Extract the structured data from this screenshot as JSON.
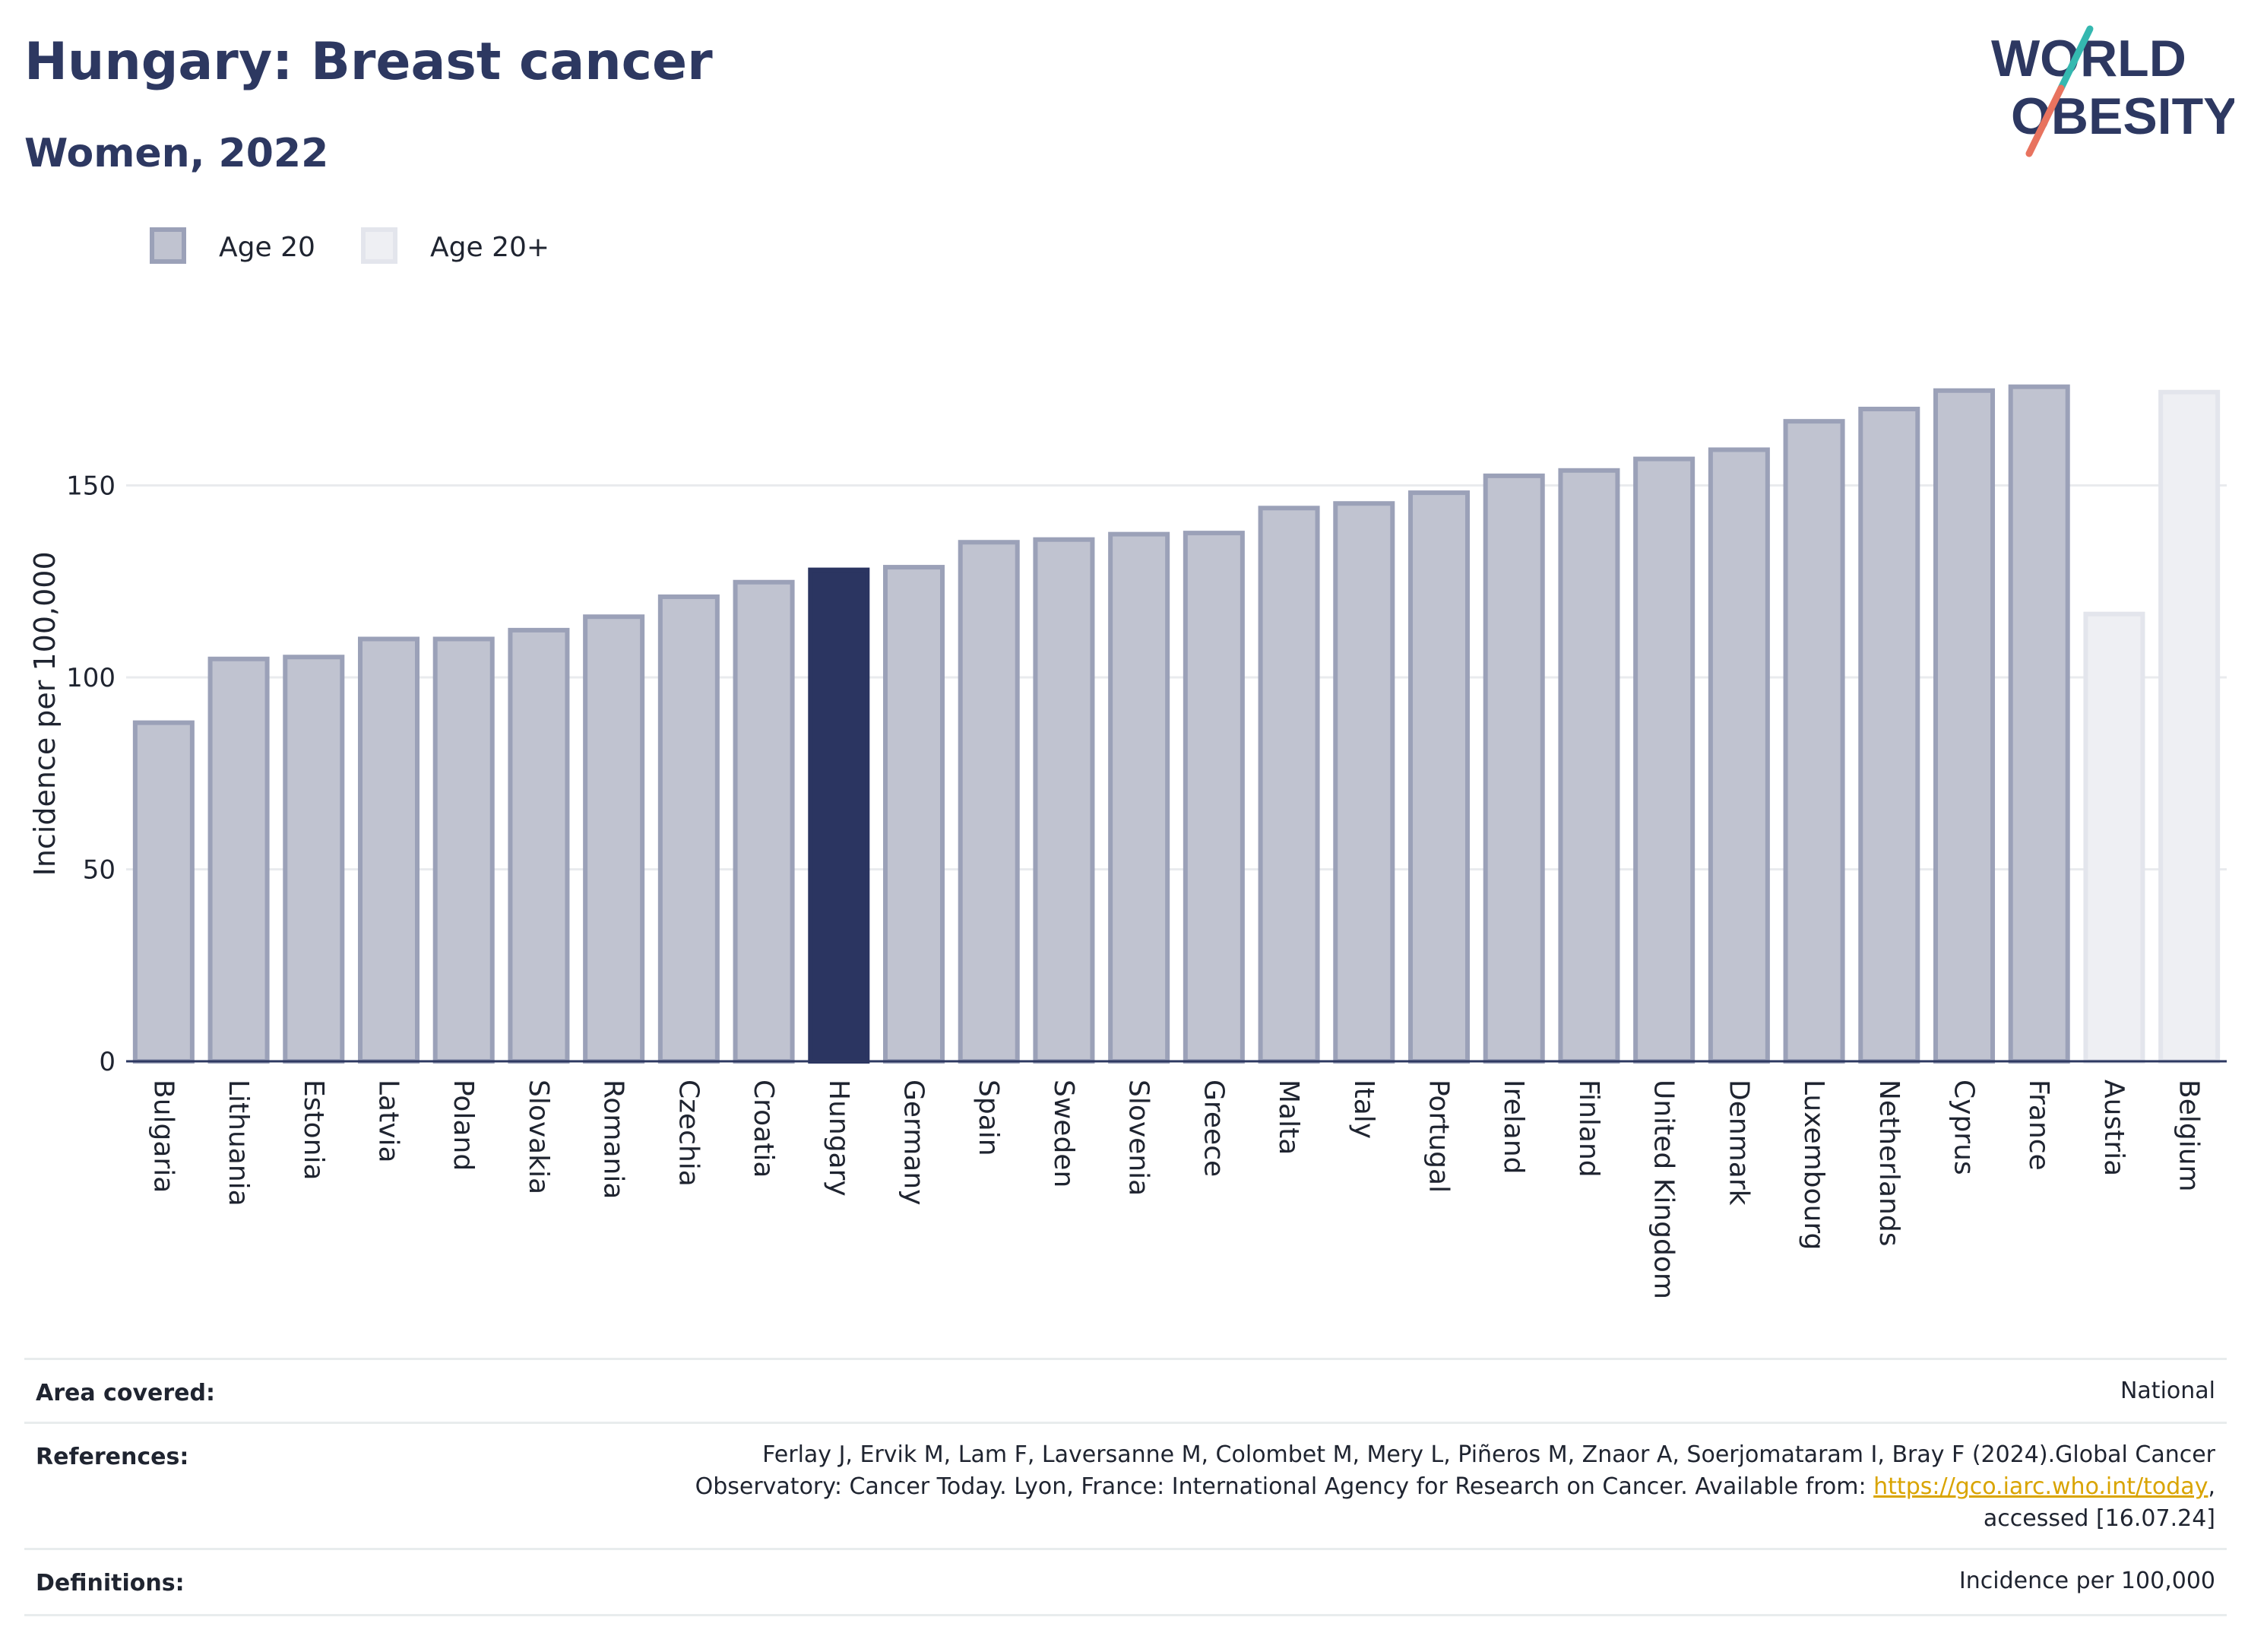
{
  "header": {
    "title": "Hungary: Breast cancer",
    "subtitle": "Women, 2022"
  },
  "logo": {
    "line1": "WORLD",
    "line2": "OBESITY",
    "icon": "world-obesity-logo-icon",
    "colors": {
      "text": "#2d3861",
      "slash_top": "#35b8b0",
      "slash_bottom": "#e8735f"
    }
  },
  "colors": {
    "age20_fill": "#c0c3d0",
    "age20_stroke": "#9ba1b8",
    "highlight": "#2b3561",
    "age20plus_fill": "#eeeff3",
    "age20plus_stroke": "#e3e5ec",
    "gridline": "#e9ebee",
    "axis": "#2d3861"
  },
  "chart_data": {
    "type": "bar",
    "ylabel": "Incidence per 100,000",
    "ylim": [
      0,
      185
    ],
    "yticks": [
      0,
      50,
      100,
      150
    ],
    "grid": true,
    "legend_position": "top-left",
    "highlight": "Hungary",
    "legend": [
      {
        "name": "Age 20",
        "series": "age20"
      },
      {
        "name": "Age 20+",
        "series": "age20plus"
      }
    ],
    "bars": [
      {
        "category": "Bulgaria",
        "value": 88.2,
        "series": "age20"
      },
      {
        "category": "Lithuania",
        "value": 104.8,
        "series": "age20"
      },
      {
        "category": "Estonia",
        "value": 105.3,
        "series": "age20"
      },
      {
        "category": "Latvia",
        "value": 110.0,
        "series": "age20"
      },
      {
        "category": "Poland",
        "value": 110.0,
        "series": "age20"
      },
      {
        "category": "Slovakia",
        "value": 112.3,
        "series": "age20"
      },
      {
        "category": "Romania",
        "value": 115.8,
        "series": "age20"
      },
      {
        "category": "Czechia",
        "value": 121.0,
        "series": "age20"
      },
      {
        "category": "Croatia",
        "value": 124.8,
        "series": "age20"
      },
      {
        "category": "Hungary",
        "value": 128.0,
        "series": "age20"
      },
      {
        "category": "Germany",
        "value": 128.7,
        "series": "age20"
      },
      {
        "category": "Spain",
        "value": 135.2,
        "series": "age20"
      },
      {
        "category": "Sweden",
        "value": 135.9,
        "series": "age20"
      },
      {
        "category": "Slovenia",
        "value": 137.3,
        "series": "age20"
      },
      {
        "category": "Greece",
        "value": 137.6,
        "series": "age20"
      },
      {
        "category": "Malta",
        "value": 144.1,
        "series": "age20"
      },
      {
        "category": "Italy",
        "value": 145.3,
        "series": "age20"
      },
      {
        "category": "Portugal",
        "value": 148.1,
        "series": "age20"
      },
      {
        "category": "Ireland",
        "value": 152.5,
        "series": "age20"
      },
      {
        "category": "Finland",
        "value": 153.9,
        "series": "age20"
      },
      {
        "category": "United Kingdom",
        "value": 156.9,
        "series": "age20"
      },
      {
        "category": "Denmark",
        "value": 159.3,
        "series": "age20"
      },
      {
        "category": "Luxembourg",
        "value": 166.7,
        "series": "age20"
      },
      {
        "category": "Netherlands",
        "value": 169.9,
        "series": "age20"
      },
      {
        "category": "Cyprus",
        "value": 174.7,
        "series": "age20"
      },
      {
        "category": "France",
        "value": 175.7,
        "series": "age20"
      },
      {
        "category": "Austria",
        "value": 116.5,
        "series": "age20plus"
      },
      {
        "category": "Belgium",
        "value": 174.3,
        "series": "age20plus"
      }
    ]
  },
  "info": {
    "area_label": "Area covered:",
    "area_value": "National",
    "references_label": "References:",
    "references_line1": "Ferlay J, Ervik M, Lam F, Laversanne M, Colombet M, Mery L, Piñeros M, Znaor A, Soerjomataram I, Bray F (2024).Global Cancer",
    "references_line2_prefix": "Observatory: Cancer Today. Lyon, France: International Agency for Research on Cancer. Available from: ",
    "references_link": "https://gco.iarc.who.int/today",
    "references_line2_suffix": ",",
    "references_line3": "accessed [16.07.24]",
    "definitions_label": "Definitions:",
    "definitions_value": "Incidence per 100,000"
  }
}
